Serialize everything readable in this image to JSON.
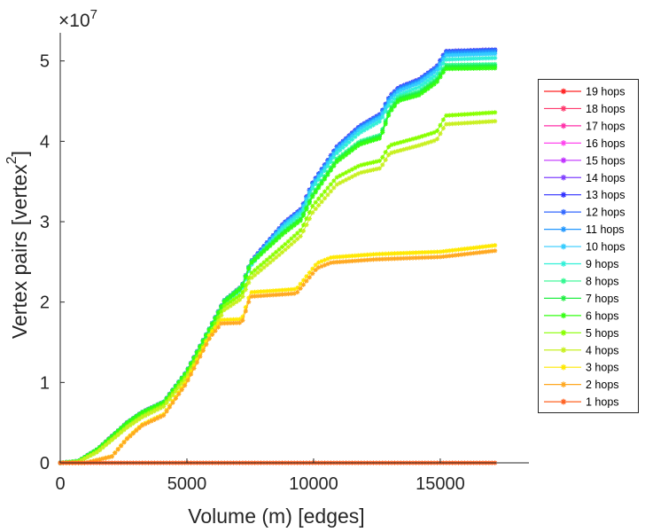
{
  "chart_data": {
    "type": "line",
    "title": "",
    "xlabel": "Volume (m) [edges]",
    "ylabel": "Vertex pairs [vertex",
    "ylabel_sup": "2",
    "ylabel_end": "]",
    "y_multiplier_label": "×10",
    "y_multiplier_exp": "7",
    "xlim": [
      0,
      18500
    ],
    "ylim": [
      0,
      5.35
    ],
    "y_unit": 10000000,
    "xticks": [
      0,
      5000,
      10000,
      15000
    ],
    "xtick_labels": [
      "0",
      "5000",
      "10000",
      "15000"
    ],
    "yticks": [
      0,
      1,
      2,
      3,
      4,
      5
    ],
    "ytick_labels": [
      "0",
      "1",
      "2",
      "3",
      "4",
      "5"
    ],
    "grid": false,
    "legend_position": "right",
    "marker": "asterisk",
    "curves": {
      "top": [
        [
          0,
          0
        ],
        [
          700,
          0.02
        ],
        [
          1470,
          0.17
        ],
        [
          2630,
          0.5
        ],
        [
          3220,
          0.63
        ],
        [
          4090,
          0.76
        ],
        [
          4970,
          1.13
        ],
        [
          5900,
          1.68
        ],
        [
          6470,
          2.02
        ],
        [
          7170,
          2.2
        ],
        [
          7510,
          2.5
        ],
        [
          8810,
          2.98
        ],
        [
          9510,
          3.16
        ],
        [
          9970,
          3.49
        ],
        [
          10910,
          3.93
        ],
        [
          11820,
          4.19
        ],
        [
          12640,
          4.34
        ],
        [
          13000,
          4.56
        ],
        [
          13360,
          4.67
        ],
        [
          14160,
          4.77
        ],
        [
          14860,
          4.93
        ],
        [
          15210,
          5.12
        ],
        [
          17200,
          5.14
        ]
      ],
      "mid": [
        [
          0,
          0
        ],
        [
          700,
          0.02
        ],
        [
          1470,
          0.17
        ],
        [
          2630,
          0.5
        ],
        [
          3220,
          0.63
        ],
        [
          4090,
          0.76
        ],
        [
          4970,
          1.13
        ],
        [
          5900,
          1.68
        ],
        [
          6470,
          2.02
        ],
        [
          7170,
          2.2
        ],
        [
          7510,
          2.5
        ],
        [
          8810,
          2.88
        ],
        [
          9510,
          3.05
        ],
        [
          9970,
          3.35
        ],
        [
          10910,
          3.78
        ],
        [
          11820,
          4.0
        ],
        [
          12640,
          4.08
        ],
        [
          13000,
          4.4
        ],
        [
          13360,
          4.55
        ],
        [
          14160,
          4.62
        ],
        [
          14860,
          4.78
        ],
        [
          15210,
          4.95
        ],
        [
          17200,
          4.96
        ]
      ],
      "low": [
        [
          0,
          0
        ],
        [
          700,
          0.01
        ],
        [
          1470,
          0.14
        ],
        [
          2630,
          0.45
        ],
        [
          3220,
          0.58
        ],
        [
          4090,
          0.72
        ],
        [
          4970,
          1.08
        ],
        [
          5900,
          1.6
        ],
        [
          6470,
          1.95
        ],
        [
          7170,
          2.1
        ],
        [
          7510,
          2.35
        ],
        [
          8810,
          2.7
        ],
        [
          9510,
          2.9
        ],
        [
          9970,
          3.2
        ],
        [
          10910,
          3.55
        ],
        [
          11820,
          3.7
        ],
        [
          12640,
          3.76
        ],
        [
          13000,
          3.95
        ],
        [
          14160,
          4.05
        ],
        [
          14860,
          4.12
        ],
        [
          15210,
          4.32
        ],
        [
          17200,
          4.36
        ]
      ],
      "orange": [
        [
          0,
          0
        ],
        [
          1000,
          0.0
        ],
        [
          2040,
          0.08
        ],
        [
          2630,
          0.3
        ],
        [
          3220,
          0.47
        ],
        [
          4090,
          0.6
        ],
        [
          4970,
          1.0
        ],
        [
          5900,
          1.58
        ],
        [
          6360,
          1.76
        ],
        [
          7170,
          1.77
        ],
        [
          7510,
          2.1
        ],
        [
          9320,
          2.14
        ],
        [
          10140,
          2.46
        ],
        [
          10700,
          2.53
        ],
        [
          12460,
          2.57
        ],
        [
          15000,
          2.6
        ],
        [
          17200,
          2.68
        ]
      ],
      "zero": [
        [
          0,
          0
        ],
        [
          17200,
          0
        ]
      ]
    },
    "series": [
      {
        "name": "19 hops",
        "color": "#ff2020",
        "curve": "top",
        "scale": 1.0
      },
      {
        "name": "18 hops",
        "color": "#ff3a6e",
        "curve": "top",
        "scale": 1.0
      },
      {
        "name": "17 hops",
        "color": "#ff2fa8",
        "curve": "top",
        "scale": 1.0
      },
      {
        "name": "16 hops",
        "color": "#ff44ee",
        "curve": "top",
        "scale": 1.0
      },
      {
        "name": "15 hops",
        "color": "#c030ff",
        "curve": "top",
        "scale": 1.0
      },
      {
        "name": "14 hops",
        "color": "#8040ff",
        "curve": "top",
        "scale": 1.0
      },
      {
        "name": "13 hops",
        "color": "#3030ff",
        "curve": "top",
        "scale": 1.0
      },
      {
        "name": "12 hops",
        "color": "#3066ff",
        "curve": "top",
        "scale": 1.0
      },
      {
        "name": "11 hops",
        "color": "#2298ff",
        "curve": "top",
        "scale": 0.995
      },
      {
        "name": "10 hops",
        "color": "#33ccff",
        "curve": "top",
        "scale": 0.99
      },
      {
        "name": "9 hops",
        "color": "#30f0d8",
        "curve": "top",
        "scale": 0.98
      },
      {
        "name": "8 hops",
        "color": "#30f890",
        "curve": "mid",
        "scale": 1.0
      },
      {
        "name": "7 hops",
        "color": "#22ee44",
        "curve": "mid",
        "scale": 0.995
      },
      {
        "name": "6 hops",
        "color": "#33ff11",
        "curve": "mid",
        "scale": 0.99
      },
      {
        "name": "5 hops",
        "color": "#88ff00",
        "curve": "low",
        "scale": 1.0
      },
      {
        "name": "4 hops",
        "color": "#c8f020",
        "curve": "low",
        "scale": 0.975
      },
      {
        "name": "3 hops",
        "color": "#ffe800",
        "curve": "orange",
        "scale": 1.01
      },
      {
        "name": "2 hops",
        "color": "#ffa820",
        "curve": "orange",
        "scale": 0.985
      },
      {
        "name": "1 hops",
        "color": "#ff6020",
        "curve": "zero",
        "scale": 1.0
      }
    ]
  }
}
